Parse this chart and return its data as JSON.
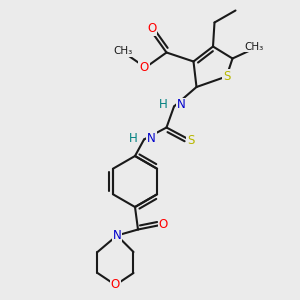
{
  "background_color": "#ebebeb",
  "atom_colors": {
    "S": "#b8b800",
    "O": "#ff0000",
    "N": "#0000cc",
    "H": "#008080",
    "C": "#1a1a1a"
  },
  "bond_color": "#1a1a1a",
  "bond_width": 1.5,
  "figsize": [
    3.0,
    3.0
  ],
  "dpi": 100
}
